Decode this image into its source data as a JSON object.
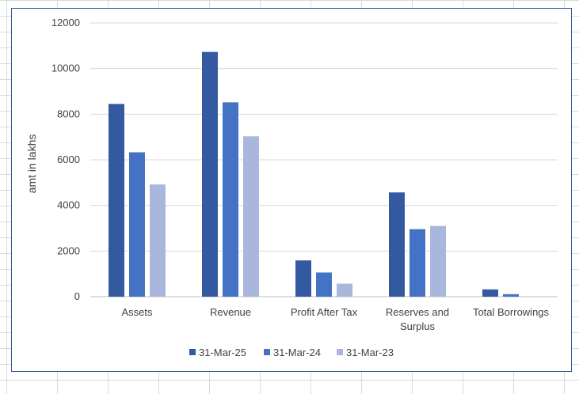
{
  "chart_data": {
    "type": "bar",
    "title": "",
    "xlabel": "",
    "ylabel": "amt in lakhs",
    "ylim": [
      0,
      12000
    ],
    "yticks": [
      "0",
      "2000",
      "4000",
      "6000",
      "8000",
      "10000",
      "12000"
    ],
    "grid": true,
    "legend_position": "bottom",
    "categories": [
      [
        "Assets"
      ],
      [
        "Revenue"
      ],
      [
        "Profit After Tax"
      ],
      [
        "Reserves and",
        "Surplus"
      ],
      [
        "Total Borrowings"
      ]
    ],
    "series": [
      {
        "name": "31-Mar-25",
        "color": "#335aa1",
        "values": [
          8450,
          10730,
          1590,
          4570,
          320
        ]
      },
      {
        "name": "31-Mar-24",
        "color": "#4472c4",
        "values": [
          6330,
          8520,
          1060,
          2960,
          110
        ]
      },
      {
        "name": "31-Mar-23",
        "color": "#a9b7dc",
        "values": [
          4920,
          7030,
          570,
          3100,
          0
        ]
      }
    ]
  }
}
